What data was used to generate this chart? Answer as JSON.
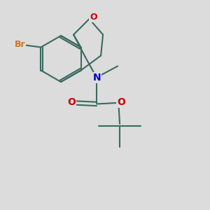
{
  "background_color": "#dcdcdc",
  "bond_color": "#3a6b5e",
  "bond_width": 1.5,
  "br_color": "#cc7722",
  "n_color": "#0000dd",
  "o_color": "#cc0000",
  "font_size": 10,
  "figsize": [
    3.0,
    3.0
  ],
  "dpi": 100,
  "xlim": [
    0,
    10
  ],
  "ylim": [
    0,
    10
  ]
}
